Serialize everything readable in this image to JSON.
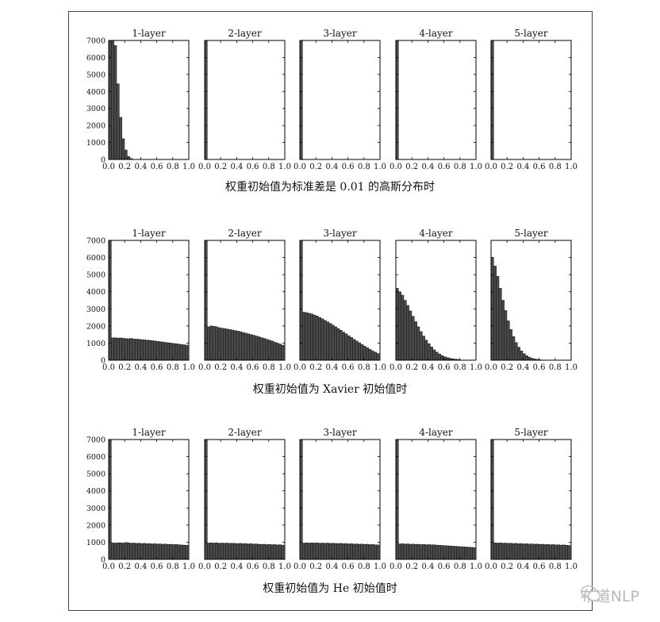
{
  "page": {
    "captions": [
      "权重初始值为标准差是 0.01 的高斯分布时",
      "权重初始值为 Xavier 初始值时",
      "权重初始值为 He 初始值时"
    ],
    "watermark_text": "布道NLP"
  },
  "colors": {
    "bar": "#4a4a4a",
    "bar_edge": "#111111",
    "axis": "#000000"
  },
  "icons": {
    "watermark": "wechat-icon"
  },
  "chart_data": [
    {
      "type": "histogram-grid",
      "caption": "权重初始值为标准差是 0.01 的高斯分布时",
      "xlim": [
        0,
        1
      ],
      "ylim": [
        0,
        7000
      ],
      "xticks": [
        0.0,
        0.2,
        0.4,
        0.6,
        0.8,
        1.0
      ],
      "yticks": [
        0,
        1000,
        2000,
        3000,
        4000,
        5000,
        6000,
        7000
      ],
      "bin_width": 0.033,
      "panels": [
        {
          "title": "1-layer",
          "values": [
            7000,
            7000,
            6700,
            4450,
            2480,
            1220,
            560,
            180,
            60
          ]
        },
        {
          "title": "2-layer",
          "values": [
            7000
          ]
        },
        {
          "title": "3-layer",
          "values": [
            7000
          ]
        },
        {
          "title": "4-layer",
          "values": [
            7000
          ]
        },
        {
          "title": "5-layer",
          "values": [
            7000
          ]
        }
      ]
    },
    {
      "type": "histogram-grid",
      "caption": "权重初始值为 Xavier 初始值时",
      "xlim": [
        0,
        1
      ],
      "ylim": [
        0,
        7000
      ],
      "xticks": [
        0.0,
        0.2,
        0.4,
        0.6,
        0.8,
        1.0
      ],
      "yticks": [
        0,
        1000,
        2000,
        3000,
        4000,
        5000,
        6000,
        7000
      ],
      "bin_width": 0.033,
      "panels": [
        {
          "title": "1-layer",
          "values": [
            7000,
            1300,
            1310,
            1290,
            1300,
            1280,
            1260,
            1250,
            1270,
            1240,
            1230,
            1220,
            1200,
            1190,
            1170,
            1160,
            1140,
            1120,
            1100,
            1080,
            1060,
            1040,
            1020,
            1000,
            980,
            960,
            940,
            920,
            900,
            880
          ]
        },
        {
          "title": "2-layer",
          "values": [
            7000,
            1950,
            2000,
            1980,
            1950,
            1900,
            1870,
            1850,
            1820,
            1790,
            1760,
            1730,
            1700,
            1660,
            1620,
            1580,
            1540,
            1500,
            1460,
            1410,
            1370,
            1320,
            1270,
            1220,
            1170,
            1120,
            1060,
            1000,
            940,
            880
          ]
        },
        {
          "title": "3-layer",
          "values": [
            7000,
            2800,
            2780,
            2740,
            2700,
            2640,
            2580,
            2500,
            2420,
            2330,
            2240,
            2150,
            2050,
            1950,
            1850,
            1750,
            1640,
            1540,
            1430,
            1330,
            1220,
            1120,
            1020,
            920,
            820,
            730,
            640,
            550,
            470,
            390
          ]
        },
        {
          "title": "4-layer",
          "values": [
            4200,
            4000,
            3800,
            3500,
            3200,
            2880,
            2560,
            2250,
            1950,
            1670,
            1410,
            1170,
            960,
            770,
            610,
            470,
            360,
            270,
            200,
            150,
            110,
            80,
            60,
            45
          ]
        },
        {
          "title": "5-layer",
          "values": [
            6000,
            5500,
            4900,
            4200,
            3500,
            2900,
            2300,
            1800,
            1380,
            1030,
            760,
            540,
            380,
            260,
            170,
            110,
            70,
            45,
            25
          ]
        }
      ]
    },
    {
      "type": "histogram-grid",
      "caption": "权重初始值为 He 初始值时",
      "xlim": [
        0,
        1
      ],
      "ylim": [
        0,
        7000
      ],
      "xticks": [
        0.0,
        0.2,
        0.4,
        0.6,
        0.8,
        1.0
      ],
      "yticks": [
        0,
        1000,
        2000,
        3000,
        4000,
        5000,
        6000,
        7000
      ],
      "bin_width": 0.033,
      "panels": [
        {
          "title": "1-layer",
          "values": [
            7000,
            960,
            950,
            970,
            960,
            950,
            980,
            960,
            940,
            950,
            930,
            940,
            920,
            930,
            910,
            920,
            900,
            910,
            890,
            900,
            880,
            890,
            870,
            880,
            860,
            870,
            850,
            840,
            830,
            820
          ]
        },
        {
          "title": "2-layer",
          "values": [
            7000,
            950,
            960,
            950,
            960,
            940,
            950,
            940,
            950,
            930,
            940,
            930,
            920,
            930,
            910,
            920,
            900,
            910,
            890,
            900,
            880,
            870,
            880,
            860,
            870,
            850,
            860,
            840,
            850,
            830
          ]
        },
        {
          "title": "3-layer",
          "values": [
            7000,
            950,
            960,
            950,
            960,
            950,
            960,
            940,
            950,
            940,
            950,
            930,
            940,
            930,
            920,
            930,
            910,
            920,
            900,
            910,
            890,
            900,
            880,
            890,
            870,
            880,
            860,
            870,
            850,
            840
          ]
        },
        {
          "title": "4-layer",
          "values": [
            7000,
            900,
            910,
            890,
            900,
            880,
            890,
            870,
            880,
            860,
            870,
            850,
            860,
            840,
            850,
            830,
            820,
            810,
            800,
            790,
            780,
            770,
            760,
            750,
            740,
            730,
            720,
            710,
            700,
            690
          ]
        },
        {
          "title": "5-layer",
          "values": [
            7000,
            960,
            950,
            960,
            940,
            950,
            930,
            940,
            920,
            930,
            910,
            920,
            900,
            910,
            890,
            900,
            880,
            890,
            870,
            880,
            860,
            870,
            850,
            860,
            840,
            850,
            830,
            840,
            820,
            810
          ]
        }
      ]
    }
  ]
}
